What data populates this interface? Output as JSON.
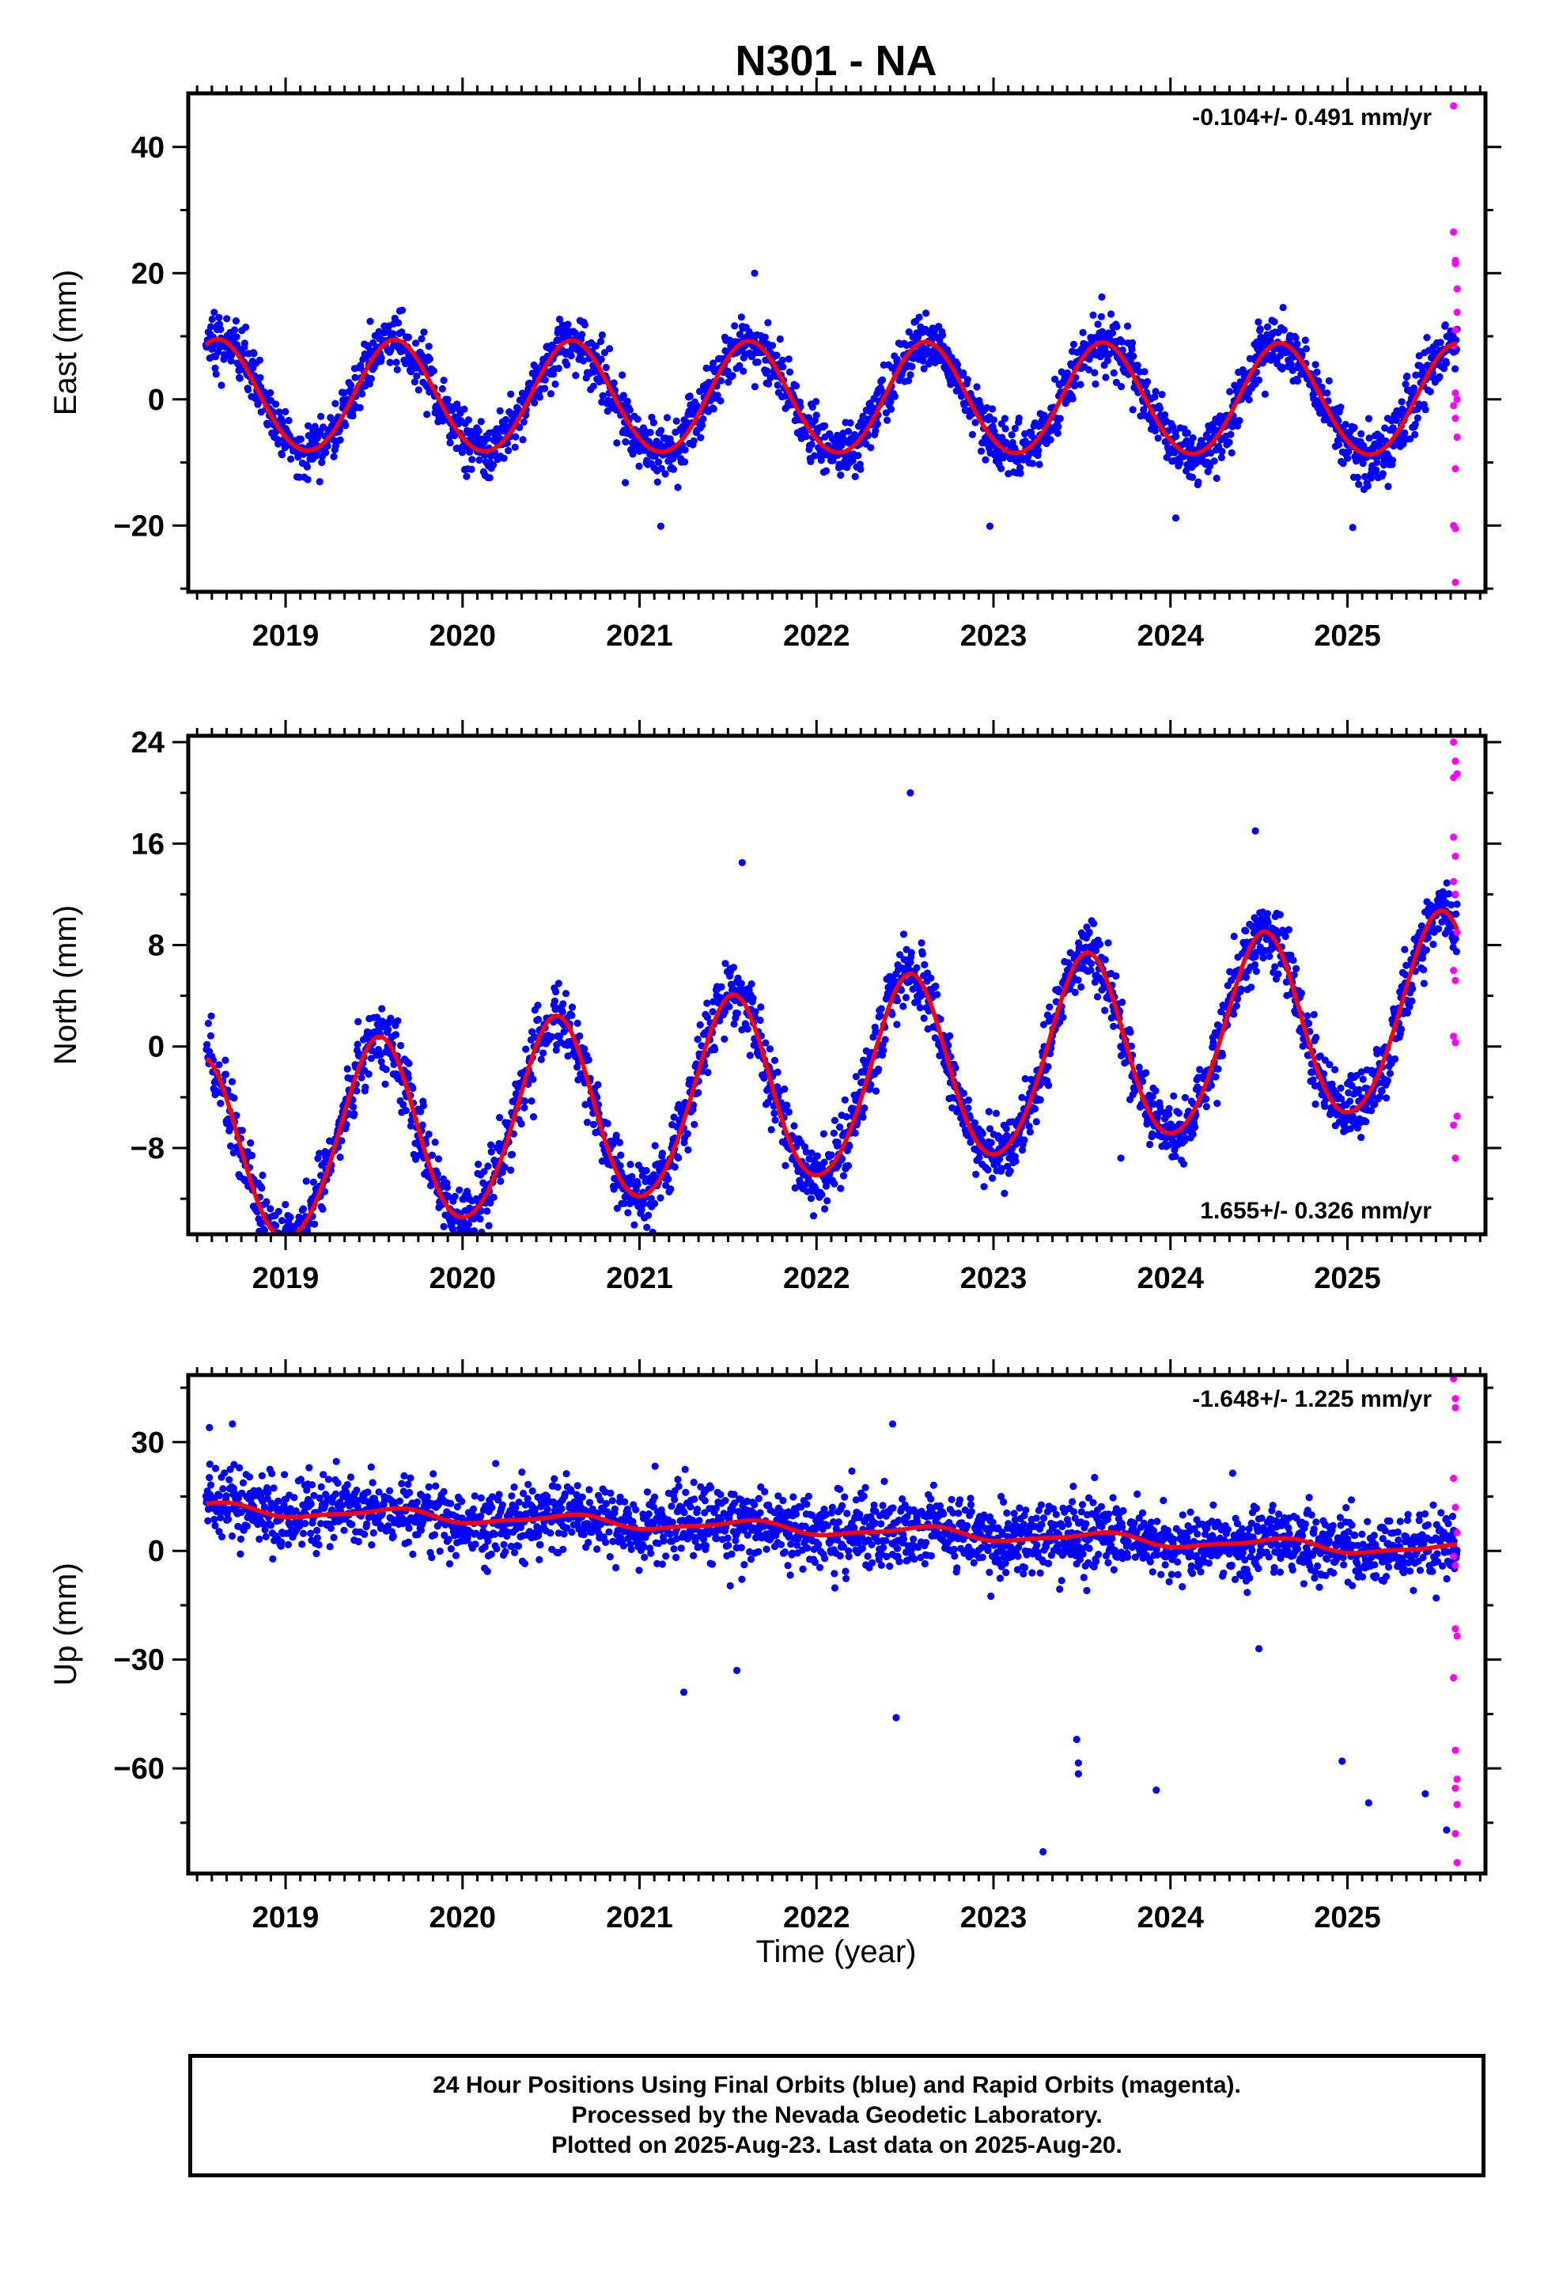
{
  "title": "N301 - NA",
  "xlabel": "Time (year)",
  "footer": {
    "line1": "24 Hour Positions Using Final Orbits (blue) and Rapid Orbits (magenta).",
    "line2": "Processed by the Nevada Geodetic Laboratory.",
    "line3": "Plotted on 2025-Aug-23. Last data on 2025-Aug-20."
  },
  "colors": {
    "final": "#0000ff",
    "rapid": "#ff00ff",
    "model": "#ff0000",
    "axis": "#000000"
  },
  "chart_data": [
    {
      "type": "scatter",
      "component": "east",
      "ylabel": "East (mm)",
      "rate_label": "-0.104+/- 0.491 mm/yr",
      "rate_position": "top-right",
      "xlim": [
        2018.45,
        2025.78
      ],
      "ylim": [
        -30.5,
        48.5
      ],
      "x_ticks": [
        2019,
        2020,
        2021,
        2022,
        2023,
        2024,
        2025
      ],
      "x_tick_labels": [
        "2019",
        "2020",
        "2021",
        "2022",
        "2023",
        "2024",
        "2025"
      ],
      "y_ticks": [
        -20,
        0,
        20,
        40
      ],
      "y_tick_labels": [
        "−20",
        "0",
        "20",
        "40"
      ],
      "model": {
        "offset": 0.0,
        "trend": -0.104,
        "annual_amp": 8.8,
        "annual_peak": 0.62,
        "semiannual_amp": 0.4,
        "semiannual_peak": 0.1
      },
      "series": [
        {
          "name": "Final Orbits",
          "source": "final",
          "x_start": 2018.55,
          "x_end": 2025.62,
          "step_days": 1,
          "noise": 2.2,
          "outliers": [
            [
              2021.12,
              -20.1
            ],
            [
              2021.65,
              20.0
            ],
            [
              2022.98,
              -20.1
            ],
            [
              2024.03,
              -18.8
            ],
            [
              2025.03,
              -20.3
            ],
            [
              2020.92,
              -13.2
            ]
          ]
        },
        {
          "name": "Rapid Orbits",
          "source": "rapid",
          "points": [
            [
              2025.6,
              46.5
            ],
            [
              2025.6,
              26.5
            ],
            [
              2025.61,
              22.0
            ],
            [
              2025.61,
              21.5
            ],
            [
              2025.62,
              17.5
            ],
            [
              2025.62,
              13.8
            ],
            [
              2025.61,
              11.0
            ],
            [
              2025.6,
              8.5
            ],
            [
              2025.61,
              1.0
            ],
            [
              2025.62,
              0.0
            ],
            [
              2025.6,
              -1.0
            ],
            [
              2025.61,
              -3.0
            ],
            [
              2025.62,
              -6.0
            ],
            [
              2025.61,
              -11.0
            ],
            [
              2025.6,
              -20.0
            ],
            [
              2025.61,
              -20.5
            ],
            [
              2025.61,
              -29.0
            ]
          ]
        }
      ]
    },
    {
      "type": "scatter",
      "component": "north",
      "ylabel": "North (mm)",
      "rate_label": "1.655+/- 0.326 mm/yr",
      "rate_position": "bottom-right",
      "xlim": [
        2018.45,
        2025.78
      ],
      "ylim": [
        -14.8,
        24.5
      ],
      "x_ticks": [
        2019,
        2020,
        2021,
        2022,
        2023,
        2024,
        2025
      ],
      "x_tick_labels": [
        "2019",
        "2020",
        "2021",
        "2022",
        "2023",
        "2024",
        "2025"
      ],
      "y_ticks": [
        -8,
        0,
        8,
        16,
        24
      ],
      "y_tick_labels": [
        "−8",
        "0",
        "8",
        "16",
        "24"
      ],
      "model": {
        "offset": -3.2,
        "trend": 1.655,
        "annual_amp": 7.5,
        "annual_peak": 0.52,
        "semiannual_amp": 0.6,
        "semiannual_peak": 0.05
      },
      "series": [
        {
          "name": "Final Orbits",
          "source": "final",
          "x_start": 2018.55,
          "x_end": 2025.62,
          "step_days": 1,
          "noise": 1.3,
          "outliers": [
            [
              2022.53,
              20.0
            ],
            [
              2021.58,
              14.5
            ],
            [
              2023.72,
              -8.8
            ],
            [
              2020.02,
              -14.3
            ],
            [
              2024.48,
              17.0
            ],
            [
              2021.2,
              -9.5
            ]
          ]
        },
        {
          "name": "Rapid Orbits",
          "source": "rapid",
          "points": [
            [
              2025.6,
              24.0
            ],
            [
              2025.61,
              22.5
            ],
            [
              2025.6,
              21.2
            ],
            [
              2025.62,
              21.5
            ],
            [
              2025.6,
              16.5
            ],
            [
              2025.61,
              15.0
            ],
            [
              2025.6,
              13.0
            ],
            [
              2025.61,
              12.0
            ],
            [
              2025.62,
              9.0
            ],
            [
              2025.6,
              6.0
            ],
            [
              2025.61,
              5.2
            ],
            [
              2025.6,
              0.8
            ],
            [
              2025.61,
              0.3
            ],
            [
              2025.62,
              -5.5
            ],
            [
              2025.6,
              -6.2
            ],
            [
              2025.61,
              -8.8
            ]
          ]
        }
      ]
    },
    {
      "type": "scatter",
      "component": "up",
      "ylabel": "Up (mm)",
      "rate_label": "-1.648+/- 1.225 mm/yr",
      "rate_position": "top-right",
      "xlim": [
        2018.45,
        2025.78
      ],
      "ylim": [
        -89.0,
        48.5
      ],
      "x_ticks": [
        2019,
        2020,
        2021,
        2022,
        2023,
        2024,
        2025
      ],
      "x_tick_labels": [
        "2019",
        "2020",
        "2021",
        "2022",
        "2023",
        "2024",
        "2025"
      ],
      "y_ticks": [
        -60,
        -30,
        0,
        30
      ],
      "y_tick_labels": [
        "−60",
        "−30",
        "0",
        "30"
      ],
      "model": {
        "offset": 6.0,
        "trend": -1.648,
        "annual_amp": 1.5,
        "annual_peak": 0.6,
        "semiannual_amp": 0.5,
        "semiannual_peak": 0.2
      },
      "series": [
        {
          "name": "Final Orbits",
          "source": "final",
          "x_start": 2018.55,
          "x_end": 2025.62,
          "step_days": 1,
          "noise": 5.0,
          "outliers": [
            [
              2018.57,
              34.0
            ],
            [
              2018.7,
              35.0
            ],
            [
              2021.25,
              -39.0
            ],
            [
              2021.55,
              -33.0
            ],
            [
              2022.43,
              35.0
            ],
            [
              2022.45,
              -46.0
            ],
            [
              2023.28,
              -83.0
            ],
            [
              2023.47,
              -52.0
            ],
            [
              2023.48,
              -58.5
            ],
            [
              2023.48,
              -61.5
            ],
            [
              2023.92,
              -66.0
            ],
            [
              2024.97,
              -58.0
            ],
            [
              2025.12,
              -69.5
            ],
            [
              2025.44,
              -67.0
            ],
            [
              2025.56,
              -77.0
            ],
            [
              2024.5,
              -27.0
            ],
            [
              2022.2,
              22.0
            ]
          ]
        },
        {
          "name": "Rapid Orbits",
          "source": "rapid",
          "points": [
            [
              2025.6,
              47.5
            ],
            [
              2025.61,
              42.0
            ],
            [
              2025.61,
              39.5
            ],
            [
              2025.6,
              20.0
            ],
            [
              2025.61,
              12.0
            ],
            [
              2025.62,
              5.0
            ],
            [
              2025.6,
              -1.5
            ],
            [
              2025.61,
              -4.0
            ],
            [
              2025.61,
              -21.5
            ],
            [
              2025.62,
              -23.5
            ],
            [
              2025.6,
              -35.0
            ],
            [
              2025.61,
              -55.0
            ],
            [
              2025.62,
              -63.0
            ],
            [
              2025.61,
              -65.5
            ],
            [
              2025.62,
              -70.0
            ],
            [
              2025.61,
              -78.0
            ],
            [
              2025.62,
              -86.0
            ]
          ]
        }
      ]
    }
  ]
}
